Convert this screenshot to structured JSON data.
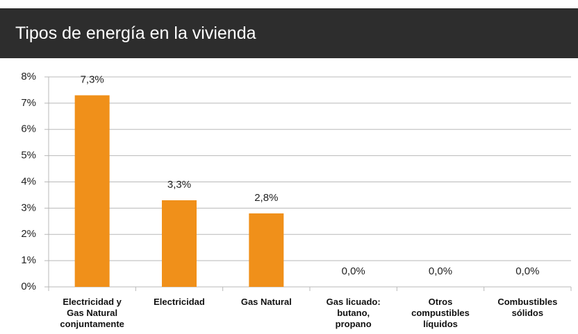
{
  "chart_data": {
    "type": "bar",
    "title": "Tipos de energía en la vivienda",
    "categories": [
      "Electricidad y Gas Natural conjuntamente",
      "Electricidad",
      "Gas Natural",
      "Gas licuado: butano, propano",
      "Otros compustibles líquidos",
      "Combustibles sólidos"
    ],
    "values": [
      7.3,
      3.3,
      2.8,
      0,
      0,
      0
    ],
    "value_labels": [
      "7,3%",
      "3,3%",
      "2,8%",
      "0,0%",
      "0,0%",
      "0,0%"
    ],
    "color": "#f0901a",
    "ylim": [
      0,
      8
    ],
    "yticks": [
      {
        "value": 0,
        "label": "0%"
      },
      {
        "value": 1,
        "label": "1%"
      },
      {
        "value": 2,
        "label": "2%"
      },
      {
        "value": 3,
        "label": "3%"
      },
      {
        "value": 4,
        "label": "4%"
      },
      {
        "value": 5,
        "label": "5%"
      },
      {
        "value": 6,
        "label": "6%"
      },
      {
        "value": 7,
        "label": "7%"
      },
      {
        "value": 8,
        "label": "8%"
      }
    ],
    "grid": true
  }
}
